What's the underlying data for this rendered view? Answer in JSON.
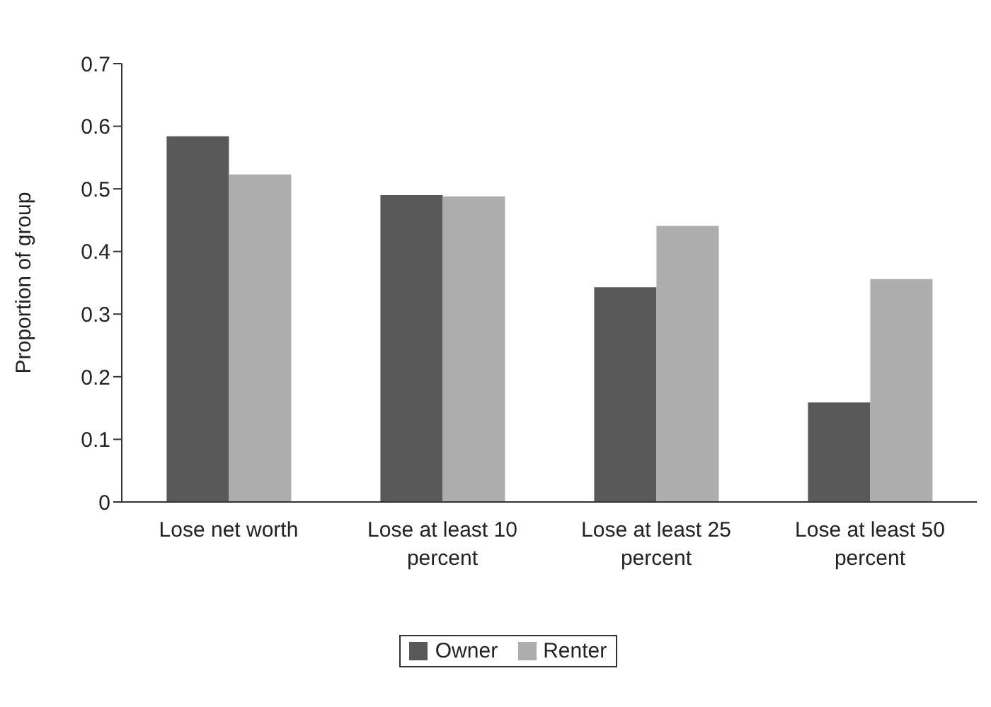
{
  "chart_data": {
    "type": "bar",
    "ylabel": "Proportion of group",
    "categories": [
      "Lose net worth",
      "Lose at least 10 percent",
      "Lose at least 25 percent",
      "Lose at least 50 percent"
    ],
    "series": [
      {
        "name": "Owner",
        "color": "#595959",
        "values": [
          0.584,
          0.49,
          0.343,
          0.159
        ]
      },
      {
        "name": "Renter",
        "color": "#adadad",
        "values": [
          0.523,
          0.488,
          0.441,
          0.356
        ]
      }
    ],
    "ylim": [
      0,
      0.7
    ],
    "yticks": [
      0,
      0.1,
      0.2,
      0.3,
      0.4,
      0.5,
      0.6,
      0.7
    ],
    "grid": false,
    "legend": "bottom"
  }
}
